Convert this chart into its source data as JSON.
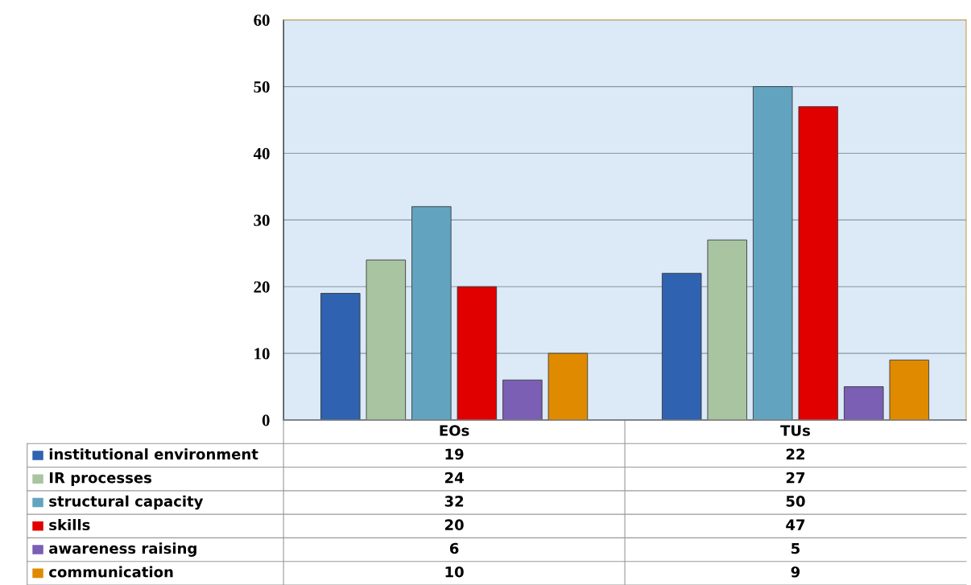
{
  "chart_data": {
    "type": "bar",
    "categories": [
      "EOs",
      "TUs"
    ],
    "series": [
      {
        "name": "institutional environment",
        "color": "#2f62b0",
        "values": [
          19,
          22
        ]
      },
      {
        "name": "IR processes",
        "color": "#a8c4a0",
        "values": [
          24,
          27
        ]
      },
      {
        "name": "structural capacity",
        "color": "#62a4c0",
        "values": [
          32,
          50
        ]
      },
      {
        "name": "skills",
        "color": "#e00000",
        "values": [
          20,
          47
        ]
      },
      {
        "name": "awareness raising",
        "color": "#7a5fb5",
        "values": [
          6,
          5
        ]
      },
      {
        "name": "communication",
        "color": "#e08a00",
        "values": [
          10,
          9
        ]
      }
    ],
    "ylim": [
      0,
      60
    ],
    "yticks": [
      0,
      10,
      20,
      30,
      40,
      50,
      60
    ],
    "grid": "y",
    "legend": "bottom",
    "data_labels": true
  }
}
